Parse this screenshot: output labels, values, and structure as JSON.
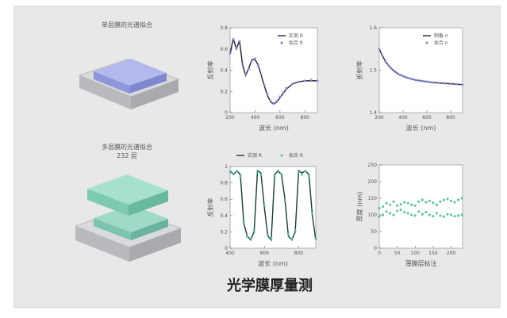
{
  "illustrations": [
    {
      "caption": "单层膜的光谱拟合"
    },
    {
      "caption": "多层膜的光谱拟合",
      "subcaption": "232 层"
    }
  ],
  "footer_title": "光学膜厚量测",
  "chart_data": [
    {
      "type": "line",
      "xlabel": "波长 (nm)",
      "ylabel": "反射率",
      "xlim": [
        200,
        900
      ],
      "ylim": [
        0,
        0.8
      ],
      "xticks": [
        200,
        400,
        600,
        800
      ],
      "yticks": [
        0,
        0.2,
        0.4,
        0.6,
        0.8
      ],
      "legend": "upper right",
      "x": [
        200,
        225,
        250,
        275,
        300,
        325,
        350,
        375,
        400,
        425,
        450,
        475,
        500,
        525,
        550,
        575,
        600,
        625,
        650,
        700,
        750,
        800,
        850,
        900
      ],
      "series": [
        {
          "name": "实测 R",
          "color": "#1b2430",
          "style": "line",
          "values": [
            0.55,
            0.7,
            0.6,
            0.68,
            0.45,
            0.35,
            0.42,
            0.5,
            0.5,
            0.45,
            0.35,
            0.25,
            0.16,
            0.1,
            0.08,
            0.1,
            0.14,
            0.18,
            0.22,
            0.27,
            0.29,
            0.3,
            0.3,
            0.3
          ]
        },
        {
          "name": "拟合 R",
          "color": "#8e8fe0",
          "style": "dots",
          "values": [
            0.56,
            0.69,
            0.61,
            0.67,
            0.46,
            0.36,
            0.41,
            0.49,
            0.51,
            0.44,
            0.36,
            0.26,
            0.17,
            0.11,
            0.09,
            0.11,
            0.15,
            0.19,
            0.23,
            0.27,
            0.29,
            0.3,
            0.31,
            0.3
          ]
        }
      ]
    },
    {
      "type": "line",
      "xlabel": "波长 (nm)",
      "ylabel": "折射率",
      "xlim": [
        200,
        900
      ],
      "ylim": [
        1.4,
        1.6
      ],
      "xticks": [
        200,
        400,
        600,
        800
      ],
      "yticks": [
        1.4,
        1.5,
        1.6
      ],
      "legend": "upper right",
      "x": [
        200,
        225,
        250,
        275,
        300,
        325,
        350,
        375,
        400,
        425,
        450,
        475,
        500,
        525,
        550,
        575,
        600,
        625,
        650,
        700,
        750,
        800,
        850,
        900
      ],
      "series": [
        {
          "name": "制备 n",
          "color": "#1b2430",
          "style": "line",
          "values": [
            1.55,
            1.535,
            1.522,
            1.512,
            1.504,
            1.498,
            1.493,
            1.489,
            1.486,
            1.483,
            1.481,
            1.479,
            1.477,
            1.476,
            1.475,
            1.474,
            1.473,
            1.472,
            1.471,
            1.47,
            1.469,
            1.468,
            1.467,
            1.466
          ]
        },
        {
          "name": "拟合 n",
          "color": "#8e8fe0",
          "style": "dots",
          "values": [
            1.55,
            1.535,
            1.522,
            1.512,
            1.504,
            1.498,
            1.493,
            1.489,
            1.486,
            1.483,
            1.481,
            1.479,
            1.477,
            1.476,
            1.475,
            1.474,
            1.473,
            1.472,
            1.471,
            1.47,
            1.469,
            1.468,
            1.467,
            1.466
          ]
        }
      ]
    },
    {
      "type": "line",
      "xlabel": "波长 (nm)",
      "ylabel": "反射率",
      "xlim": [
        400,
        900
      ],
      "ylim": [
        0,
        1
      ],
      "xticks": [
        400,
        600,
        800
      ],
      "yticks": [
        0,
        0.2,
        0.4,
        0.6,
        0.8,
        1
      ],
      "legend": "top outside",
      "x": [
        400,
        420,
        440,
        460,
        480,
        500,
        520,
        540,
        560,
        580,
        600,
        620,
        640,
        660,
        680,
        700,
        720,
        740,
        760,
        780,
        800,
        820,
        840,
        860,
        880,
        900
      ],
      "series": [
        {
          "name": "实测 R",
          "color": "#1b3a34",
          "style": "line",
          "values": [
            0.95,
            0.9,
            0.95,
            0.9,
            0.3,
            0.15,
            0.1,
            0.2,
            0.95,
            0.92,
            0.5,
            0.15,
            0.1,
            0.9,
            0.95,
            0.9,
            0.6,
            0.15,
            0.1,
            0.2,
            0.95,
            0.92,
            0.95,
            0.9,
            0.4,
            0.1
          ]
        },
        {
          "name": "拟合 R",
          "color": "#5cc8b0",
          "style": "dots",
          "values": [
            0.93,
            0.91,
            0.94,
            0.88,
            0.32,
            0.14,
            0.12,
            0.22,
            0.93,
            0.9,
            0.52,
            0.16,
            0.12,
            0.88,
            0.93,
            0.91,
            0.58,
            0.17,
            0.11,
            0.22,
            0.93,
            0.9,
            0.94,
            0.88,
            0.42,
            0.12
          ]
        }
      ]
    },
    {
      "type": "scatter",
      "xlabel": "薄膜层标注",
      "ylabel": "厚度 (nm)",
      "xlim": [
        0,
        232
      ],
      "ylim": [
        0,
        250
      ],
      "xticks": [
        0,
        50,
        100,
        150,
        200
      ],
      "yticks": [
        0,
        50,
        100,
        150,
        200,
        250
      ],
      "x": [
        0,
        10,
        20,
        30,
        40,
        50,
        60,
        70,
        80,
        90,
        100,
        110,
        120,
        130,
        140,
        150,
        160,
        170,
        180,
        190,
        200,
        210,
        220,
        230
      ],
      "series": [
        {
          "color": "#4fb89e",
          "style": "dots",
          "values": [
            120,
            125,
            135,
            130,
            140,
            128,
            132,
            138,
            135,
            130,
            128,
            140,
            145,
            138,
            142,
            136,
            130,
            140,
            145,
            148,
            142,
            138,
            145,
            150
          ]
        },
        {
          "color": "#4fb89e",
          "style": "dots",
          "values": [
            95,
            100,
            110,
            105,
            100,
            112,
            115,
            108,
            105,
            100,
            98,
            110,
            102,
            108,
            100,
            96,
            105,
            98,
            95,
            102,
            100,
            96,
            98,
            100
          ]
        }
      ]
    }
  ]
}
